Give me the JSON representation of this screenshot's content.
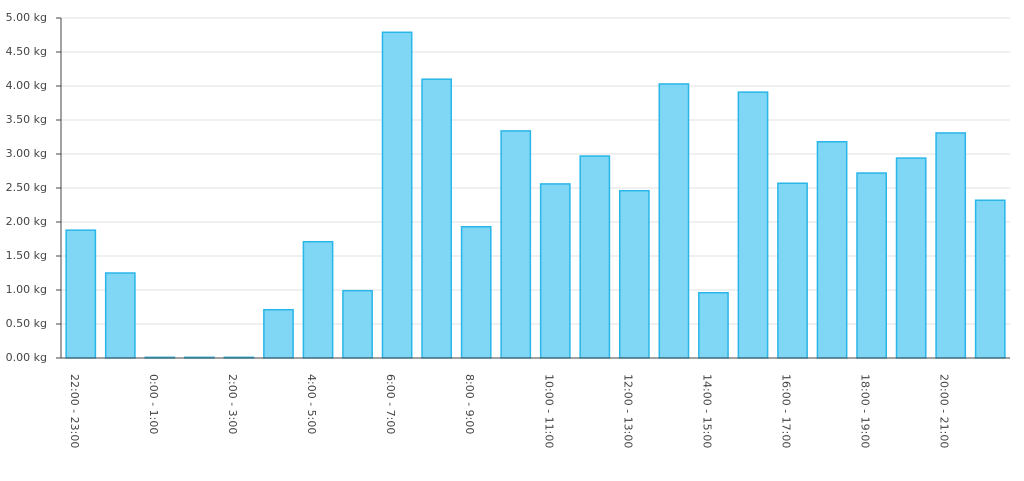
{
  "chart_data": {
    "type": "bar",
    "categories": [
      "22:00 - 23:00",
      null,
      "0:00 - 1:00",
      null,
      "2:00 - 3:00",
      null,
      "4:00 - 5:00",
      null,
      "6:00 - 7:00",
      null,
      "8:00 - 9:00",
      null,
      "10:00 - 11:00",
      null,
      "12:00 - 13:00",
      null,
      "14:00 - 15:00",
      null,
      "16:00 - 17:00",
      null,
      "18:00 - 19:00",
      null,
      "20:00 - 21:00",
      null
    ],
    "values": [
      1.88,
      1.25,
      0.01,
      0.01,
      0.01,
      0.71,
      1.71,
      0.99,
      4.79,
      4.1,
      1.93,
      3.34,
      2.56,
      2.97,
      2.46,
      4.03,
      0.96,
      3.91,
      2.57,
      3.18,
      2.72,
      2.94,
      3.31,
      2.32
    ],
    "color": "#7fd6f5",
    "edge_color": "#29b6e8",
    "ylim": [
      0,
      5
    ],
    "yticks": [
      {
        "value": 0,
        "label": "0.00 kg"
      },
      {
        "value": 0.5,
        "label": "0.50 kg"
      },
      {
        "value": 1,
        "label": "1.00 kg"
      },
      {
        "value": 1.5,
        "label": "1.50 kg"
      },
      {
        "value": 2,
        "label": "2.00 kg"
      },
      {
        "value": 2.5,
        "label": "2.50 kg"
      },
      {
        "value": 3,
        "label": "3.00 kg"
      },
      {
        "value": 3.5,
        "label": "3.50 kg"
      },
      {
        "value": 4,
        "label": "4.00 kg"
      },
      {
        "value": 4.5,
        "label": "4.50 kg"
      },
      {
        "value": 5,
        "label": "5.00 kg"
      }
    ],
    "grid": true
  }
}
